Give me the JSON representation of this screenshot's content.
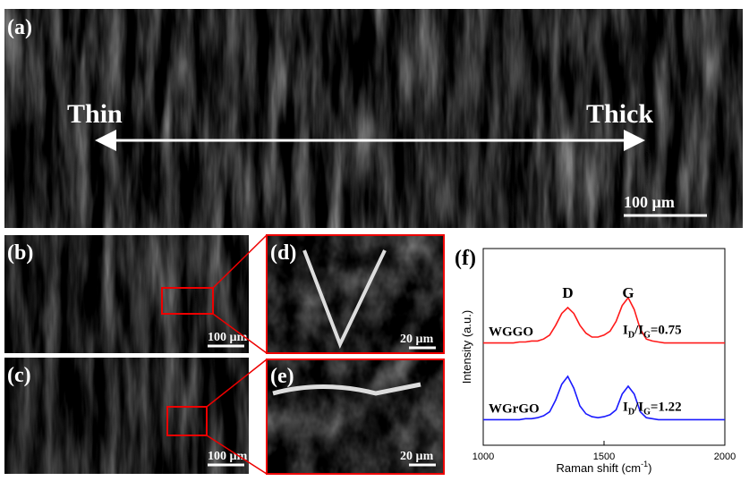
{
  "panels": {
    "a": {
      "label": "(a)",
      "left": "Thin",
      "right": "Thick",
      "scale": "100 µm"
    },
    "b": {
      "label": "(b)",
      "scale": "100 µm"
    },
    "c": {
      "label": "(c)",
      "scale": "100 µm"
    },
    "d": {
      "label": "(d)",
      "scale": "20 µm"
    },
    "e": {
      "label": "(e)",
      "scale": "20 µm"
    },
    "f": {
      "label": "(f)"
    }
  },
  "chart_data": {
    "type": "line",
    "xlabel": [
      "Raman shift (cm",
      "-1",
      ")"
    ],
    "ylabel": "Intensity (a.u.)",
    "xlim": [
      1000,
      2000
    ],
    "xticks": [
      1000,
      1500,
      2000
    ],
    "ylim": [
      0,
      10
    ],
    "peaks": [
      {
        "label": "D",
        "x": 1350
      },
      {
        "label": "G",
        "x": 1600
      }
    ],
    "x": [
      1000,
      1025,
      1050,
      1075,
      1100,
      1125,
      1150,
      1175,
      1200,
      1225,
      1250,
      1275,
      1300,
      1325,
      1350,
      1375,
      1400,
      1425,
      1450,
      1475,
      1500,
      1525,
      1550,
      1575,
      1600,
      1625,
      1650,
      1675,
      1700,
      1725,
      1750,
      1775,
      1800,
      1825,
      1850,
      1875,
      1900,
      1925,
      1950,
      1975,
      2000
    ],
    "series": [
      {
        "name": "WGGO",
        "color": "#ff1a1a",
        "ratio_label": [
          "I",
          "D",
          "/I",
          "G",
          "=0.75"
        ],
        "values": [
          5.2,
          5.2,
          5.2,
          5.2,
          5.2,
          5.2,
          5.25,
          5.25,
          5.3,
          5.3,
          5.4,
          5.6,
          6.1,
          6.7,
          7.0,
          6.7,
          6.1,
          5.7,
          5.5,
          5.5,
          5.6,
          5.8,
          6.3,
          7.1,
          7.5,
          6.9,
          5.9,
          5.4,
          5.3,
          5.25,
          5.2,
          5.2,
          5.2,
          5.2,
          5.2,
          5.2,
          5.2,
          5.2,
          5.2,
          5.2,
          5.2
        ]
      },
      {
        "name": "WGrGO",
        "color": "#1a1aff",
        "ratio_label": [
          "I",
          "D",
          "/I",
          "G",
          "=1.22"
        ],
        "values": [
          1.3,
          1.3,
          1.3,
          1.3,
          1.3,
          1.3,
          1.3,
          1.35,
          1.35,
          1.4,
          1.5,
          1.7,
          2.3,
          3.1,
          3.5,
          2.9,
          2.0,
          1.6,
          1.45,
          1.4,
          1.45,
          1.55,
          1.8,
          2.6,
          3.0,
          2.6,
          1.7,
          1.4,
          1.35,
          1.3,
          1.3,
          1.3,
          1.3,
          1.3,
          1.3,
          1.3,
          1.3,
          1.3,
          1.3,
          1.3,
          1.3
        ]
      }
    ]
  }
}
